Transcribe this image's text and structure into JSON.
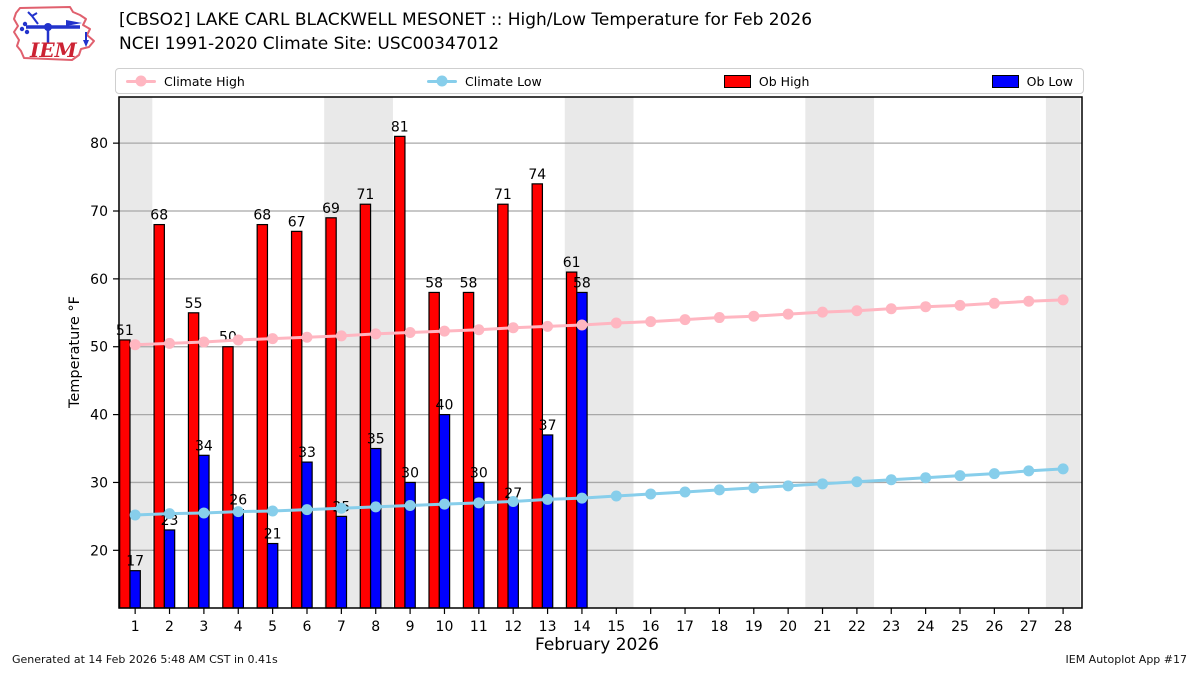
{
  "header": {
    "title_line1": "[CBSO2] LAKE CARL BLACKWELL MESONET :: High/Low Temperature for Feb 2026",
    "title_line2": "NCEI 1991-2020 Climate Site: USC00347012",
    "logo_text": "IEM"
  },
  "legend": {
    "items": [
      {
        "label": "Climate High",
        "type": "line",
        "color": "#ffb6c1"
      },
      {
        "label": "Climate Low",
        "type": "line",
        "color": "#87ceeb"
      },
      {
        "label": "Ob High",
        "type": "rect",
        "color": "#ff0000"
      },
      {
        "label": "Ob Low",
        "type": "rect",
        "color": "#0000ff"
      }
    ]
  },
  "chart_data": {
    "type": "bar",
    "title": "[CBSO2] LAKE CARL BLACKWELL MESONET :: High/Low Temperature for Feb 2026",
    "subtitle": "NCEI 1991-2020 Climate Site: USC00347012",
    "xlabel": "February 2026",
    "ylabel": "Temperature °F",
    "x": [
      1,
      2,
      3,
      4,
      5,
      6,
      7,
      8,
      9,
      10,
      11,
      12,
      13,
      14,
      15,
      16,
      17,
      18,
      19,
      20,
      21,
      22,
      23,
      24,
      25,
      26,
      27,
      28
    ],
    "yticks": [
      20,
      30,
      40,
      50,
      60,
      70,
      80
    ],
    "ylim": [
      11.5,
      86.8
    ],
    "xlim": [
      0.53,
      28.55
    ],
    "grid": true,
    "legend_position": "top",
    "weekend_bands": [
      [
        0.5,
        1.5
      ],
      [
        6.5,
        8.5
      ],
      [
        13.5,
        15.5
      ],
      [
        20.5,
        22.5
      ],
      [
        27.5,
        28.5
      ]
    ],
    "colors": {
      "weekend_band": "#e9e9e9",
      "grid": "#a8a8a8",
      "axis": "#000000"
    },
    "series": [
      {
        "name": "Climate High",
        "type": "line",
        "color": "#ffb6c1",
        "values": [
          50.3,
          50.5,
          50.7,
          51.0,
          51.2,
          51.4,
          51.6,
          51.9,
          52.1,
          52.3,
          52.5,
          52.8,
          53.0,
          53.2,
          53.5,
          53.7,
          54.0,
          54.3,
          54.5,
          54.8,
          55.1,
          55.3,
          55.6,
          55.9,
          56.1,
          56.4,
          56.7,
          56.9
        ]
      },
      {
        "name": "Climate Low",
        "type": "line",
        "color": "#87ceeb",
        "values": [
          25.2,
          25.4,
          25.5,
          25.7,
          25.8,
          26.0,
          26.2,
          26.4,
          26.6,
          26.8,
          27.0,
          27.2,
          27.5,
          27.7,
          28.0,
          28.3,
          28.6,
          28.9,
          29.2,
          29.5,
          29.8,
          30.1,
          30.4,
          30.7,
          31.0,
          31.3,
          31.7,
          32.0
        ]
      },
      {
        "name": "Ob High",
        "type": "bar",
        "color": "#ff0000",
        "offset": -0.3,
        "bar_width": 0.3,
        "values": [
          51,
          68,
          55,
          50,
          68,
          67,
          69,
          71,
          81,
          58,
          58,
          71,
          74,
          61
        ]
      },
      {
        "name": "Ob Low",
        "type": "bar",
        "color": "#0000ff",
        "offset": 0.0,
        "bar_width": 0.3,
        "values": [
          17,
          23,
          34,
          26,
          21,
          33,
          25,
          35,
          30,
          40,
          30,
          27,
          37,
          58
        ]
      }
    ]
  },
  "footer": {
    "left": "Generated at 14 Feb 2026 5:48 AM CST in 0.41s",
    "right": "IEM Autoplot App #17"
  }
}
